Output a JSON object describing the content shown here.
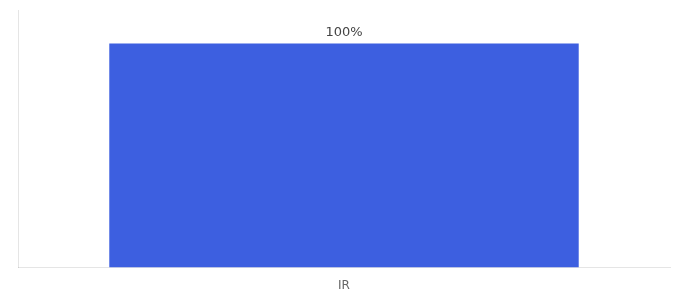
{
  "chart_data": {
    "type": "bar",
    "categories": [
      "IR"
    ],
    "values": [
      100
    ],
    "value_labels": [
      "100%"
    ],
    "data_labels": true,
    "color": "#3d5fe0",
    "ylim": [
      0,
      115
    ],
    "tick_labels": "x",
    "grid": false
  }
}
